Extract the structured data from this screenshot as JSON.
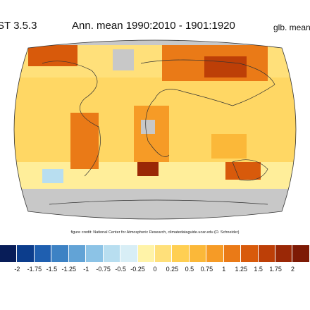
{
  "header": {
    "dataset": "GISTEMP",
    "dataset_visible": "ST 3.5.3",
    "period": "Ann. mean 1990:2010 - 1901:1920",
    "global_mean_label": "glb. mean"
  },
  "credit": "figure credit: National Center for Atmospheric Research, climatedataguide.ucar.edu (D. Schneider)",
  "colorbar": {
    "colors": [
      "#081d58",
      "#0c3d8c",
      "#1f5fb0",
      "#3d82c4",
      "#62a3d6",
      "#8cc3e6",
      "#b8def0",
      "#d8eef6",
      "#fff3a8",
      "#ffe07a",
      "#ffcf52",
      "#fbb839",
      "#f69b26",
      "#ea7a17",
      "#d85a0b",
      "#bd3f07",
      "#9a2806",
      "#7d1a05"
    ],
    "tick_labels": [
      "-2",
      "-1.75",
      "-1.5",
      "-1.25",
      "-1",
      "-0.75",
      "-0.5",
      "-0.25",
      "0",
      "0.25",
      "0.5",
      "0.75",
      "1",
      "1.25",
      "1.5",
      "1.75",
      "2"
    ]
  },
  "map": {
    "projection": "Robinson",
    "missing_color": "#c8c8c8",
    "coastline_color": "#333333"
  }
}
